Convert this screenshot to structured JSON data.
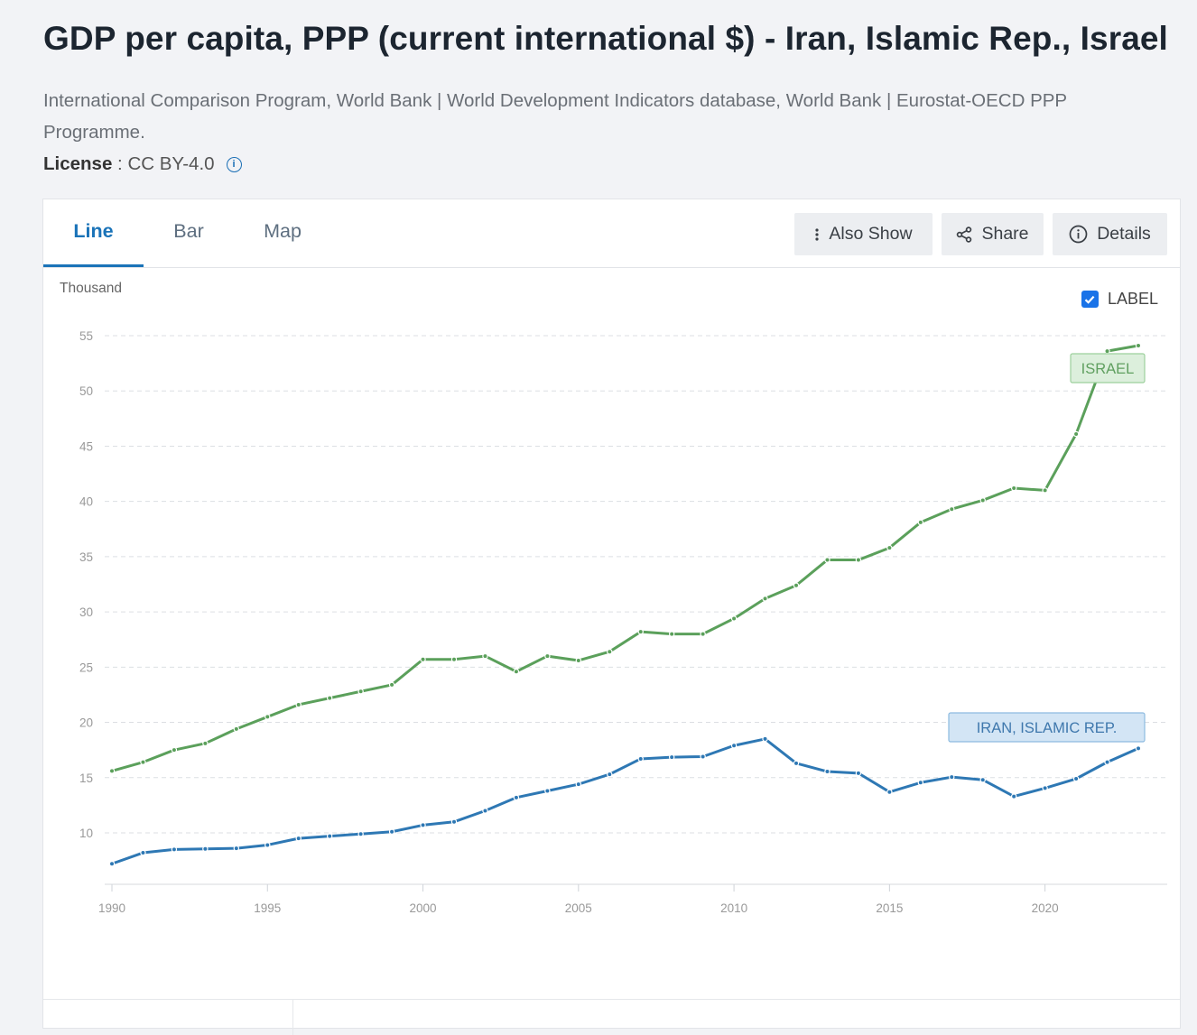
{
  "header": {
    "title": "GDP per capita, PPP (current international $) - Iran, Islamic Rep., Israel",
    "sources": "International Comparison Program, World Bank | World Development Indicators database, World Bank | Eurostat-OECD PPP Programme.",
    "license_label": "License",
    "license_sep": " : ",
    "license_value": "CC BY-4.0",
    "license_info_icon": "i"
  },
  "tabs": [
    {
      "label": "Line",
      "active": true
    },
    {
      "label": "Bar",
      "active": false
    },
    {
      "label": "Map",
      "active": false
    }
  ],
  "toolbar": {
    "also_show": "Also Show",
    "share": "Share",
    "details": "Details"
  },
  "label_toggle": {
    "label": "LABEL",
    "checked": true
  },
  "colors": {
    "israel": "#5ba05b",
    "iran": "#2e78b4",
    "accent": "#1a73b8"
  },
  "chart_data": {
    "type": "line",
    "ylabel": "Thousand",
    "yticks": [
      10,
      15,
      20,
      25,
      30,
      35,
      40,
      45,
      50,
      55
    ],
    "xticks": [
      1990,
      1995,
      2000,
      2005,
      2010,
      2015,
      2020
    ],
    "xlim": [
      1990,
      2023
    ],
    "ylim": [
      5,
      55
    ],
    "grid": true,
    "x": [
      1990,
      1991,
      1992,
      1993,
      1994,
      1995,
      1996,
      1997,
      1998,
      1999,
      2000,
      2001,
      2002,
      2003,
      2004,
      2005,
      2006,
      2007,
      2008,
      2009,
      2010,
      2011,
      2012,
      2013,
      2014,
      2015,
      2016,
      2017,
      2018,
      2019,
      2020,
      2021,
      2022,
      2023
    ],
    "series": [
      {
        "name": "ISRAEL",
        "color": "#5ba05b",
        "values": [
          15.6,
          16.4,
          17.5,
          18.1,
          19.4,
          20.5,
          21.6,
          22.2,
          22.8,
          23.4,
          25.7,
          25.7,
          26.0,
          24.6,
          26.0,
          25.6,
          26.4,
          28.2,
          28.0,
          28.0,
          29.4,
          31.2,
          32.4,
          34.7,
          34.7,
          35.8,
          38.1,
          39.3,
          40.1,
          41.2,
          41.0,
          46.1,
          53.6,
          54.1
        ]
      },
      {
        "name": "IRAN, ISLAMIC REP.",
        "color": "#2e78b4",
        "values": [
          7.2,
          8.2,
          8.5,
          8.55,
          8.6,
          8.9,
          9.5,
          9.7,
          9.9,
          10.1,
          10.7,
          11.0,
          12.0,
          13.2,
          13.8,
          14.4,
          15.3,
          16.7,
          16.85,
          16.9,
          17.9,
          18.5,
          16.3,
          15.55,
          15.4,
          13.7,
          14.55,
          15.05,
          14.8,
          13.3,
          14.05,
          14.9,
          16.4,
          17.65
        ]
      }
    ]
  }
}
